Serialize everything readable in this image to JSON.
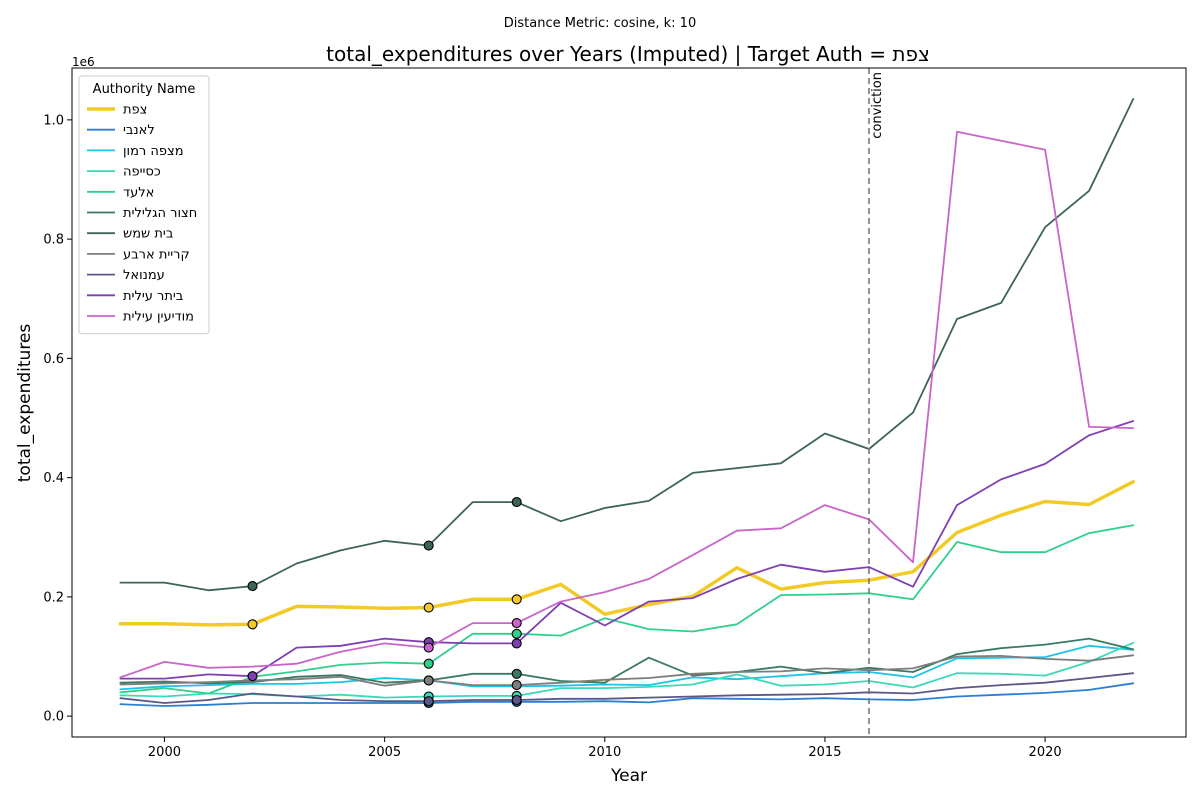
{
  "figure": {
    "suptitle": "Distance Metric: cosine, k: 10",
    "title": "total_expenditures over Years (Imputed) | Target Auth = צפת",
    "y_offset_label": "1e6",
    "vline_label": "conviction"
  },
  "chart_data": {
    "type": "line",
    "title": "total_expenditures over Years (Imputed) | Target Auth = צפת",
    "xlabel": "Year",
    "ylabel": "total_expenditures",
    "xlim": [
      1997.9,
      2023.2
    ],
    "ylim": [
      -35000,
      1087000
    ],
    "x_ticks": [
      2000,
      2005,
      2010,
      2015,
      2020
    ],
    "y_ticks": [
      0,
      200000,
      400000,
      600000,
      800000,
      1000000
    ],
    "y_tick_labels": [
      "0.0",
      "0.2",
      "0.4",
      "0.6",
      "0.8",
      "1.0"
    ],
    "y_scale_label": "1e6",
    "grid": false,
    "legend_title": "Authority Name",
    "legend_position": "upper-left",
    "vertical_line": {
      "x": 2016,
      "label": "conviction",
      "color": "#777777",
      "style": "dashed"
    },
    "x": [
      1999,
      2000,
      2001,
      2002,
      2003,
      2004,
      2005,
      2006,
      2007,
      2008,
      2009,
      2010,
      2011,
      2012,
      2013,
      2014,
      2015,
      2016,
      2017,
      2018,
      2019,
      2020,
      2021,
      2022
    ],
    "series": [
      {
        "name": "צפת",
        "color": "#f2ca27",
        "width": 3.5,
        "target": true,
        "values": [
          155000,
          155000,
          153000,
          154000,
          184000,
          183000,
          181000,
          182000,
          196000,
          196000,
          221000,
          171000,
          187000,
          201000,
          249000,
          213000,
          224000,
          228000,
          242000,
          308000,
          337000,
          360000,
          355000,
          393000
        ],
        "imputed_years": [
          2002,
          2006,
          2008
        ]
      },
      {
        "name": "לאנבי",
        "color": "#2a7fd4",
        "width": 1.8,
        "values": [
          20000,
          17000,
          19000,
          22000,
          22000,
          22000,
          22000,
          22000,
          24000,
          24000,
          24000,
          25000,
          23000,
          30000,
          29000,
          28000,
          30000,
          28000,
          27000,
          33000,
          36000,
          39000,
          44000,
          55000
        ],
        "imputed_years": [
          2006,
          2008
        ]
      },
      {
        "name": "מצפה רמון",
        "color": "#1ec3e8",
        "width": 1.8,
        "values": [
          45000,
          50000,
          52000,
          54000,
          54000,
          57000,
          64000,
          60000,
          50000,
          50000,
          51000,
          53000,
          52000,
          65000,
          62000,
          67000,
          72000,
          74000,
          65000,
          97000,
          98000,
          99000,
          118000,
          111000
        ],
        "imputed_years": []
      },
      {
        "name": "כסייפה",
        "color": "#3ad9b8",
        "width": 1.8,
        "values": [
          35000,
          33000,
          38000,
          37000,
          33000,
          36000,
          31000,
          33000,
          34000,
          34000,
          47000,
          47000,
          49000,
          53000,
          70000,
          51000,
          53000,
          59000,
          48000,
          72000,
          71000,
          68000,
          91000,
          123000
        ],
        "imputed_years": [
          2006,
          2008
        ]
      },
      {
        "name": "אלעד",
        "color": "#2fcf8c",
        "width": 1.8,
        "values": [
          40000,
          47000,
          38000,
          66000,
          75000,
          86000,
          90000,
          88000,
          138000,
          138000,
          135000,
          164000,
          146000,
          142000,
          154000,
          203000,
          204000,
          206000,
          196000,
          292000,
          275000,
          275000,
          307000,
          320000
        ],
        "imputed_years": [
          2006,
          2008
        ]
      },
      {
        "name": "חצור הגלילית",
        "color": "#3a7a60",
        "width": 1.8,
        "values": [
          56000,
          58000,
          55000,
          57000,
          66000,
          69000,
          56000,
          60000,
          71000,
          71000,
          59000,
          56000,
          98000,
          68000,
          74000,
          83000,
          72000,
          81000,
          74000,
          104000,
          114000,
          120000,
          130000,
          112000
        ],
        "imputed_years": [
          2006,
          2008
        ]
      },
      {
        "name": "בית שמש",
        "color": "#3e6457",
        "width": 1.8,
        "values": [
          224000,
          224000,
          211000,
          218000,
          256000,
          278000,
          294000,
          286000,
          359000,
          359000,
          327000,
          349000,
          361000,
          408000,
          416000,
          424000,
          474000,
          448000,
          509000,
          666000,
          693000,
          820000,
          881000,
          1035000
        ],
        "imputed_years": [
          2002,
          2006,
          2008
        ]
      },
      {
        "name": "קריית ארבע",
        "color": "#7d7d7d",
        "width": 1.8,
        "values": [
          53000,
          55000,
          57000,
          60000,
          62000,
          66000,
          51000,
          60000,
          52000,
          52000,
          56000,
          61000,
          64000,
          71000,
          74000,
          75000,
          80000,
          77000,
          80000,
          100000,
          101000,
          96000,
          93000,
          102000
        ],
        "imputed_years": [
          2006,
          2008
        ]
      },
      {
        "name": "עמנואל",
        "color": "#5a5888",
        "width": 1.8,
        "values": [
          30000,
          22000,
          27000,
          38000,
          33000,
          27000,
          25000,
          25000,
          27000,
          27000,
          29000,
          29000,
          31000,
          33000,
          35000,
          36000,
          37000,
          40000,
          38000,
          47000,
          52000,
          56000,
          64000,
          72000
        ],
        "imputed_years": [
          2006,
          2008
        ]
      },
      {
        "name": "ביתר עילית",
        "color": "#7e3fb3",
        "width": 1.8,
        "values": [
          63000,
          63000,
          70000,
          67000,
          115000,
          118000,
          130000,
          124000,
          122000,
          122000,
          190000,
          152000,
          192000,
          198000,
          230000,
          254000,
          242000,
          250000,
          217000,
          354000,
          397000,
          423000,
          471000,
          495000
        ],
        "imputed_years": [
          2002,
          2006,
          2008
        ]
      },
      {
        "name": "מודיעין עילית",
        "color": "#c865c8",
        "width": 1.8,
        "values": [
          65000,
          91000,
          81000,
          83000,
          88000,
          108000,
          122000,
          115000,
          156000,
          156000,
          192000,
          208000,
          230000,
          270000,
          311000,
          315000,
          354000,
          330000,
          258000,
          980000,
          965000,
          950000,
          485000,
          483000
        ],
        "imputed_years": [
          2006,
          2008
        ]
      }
    ]
  }
}
